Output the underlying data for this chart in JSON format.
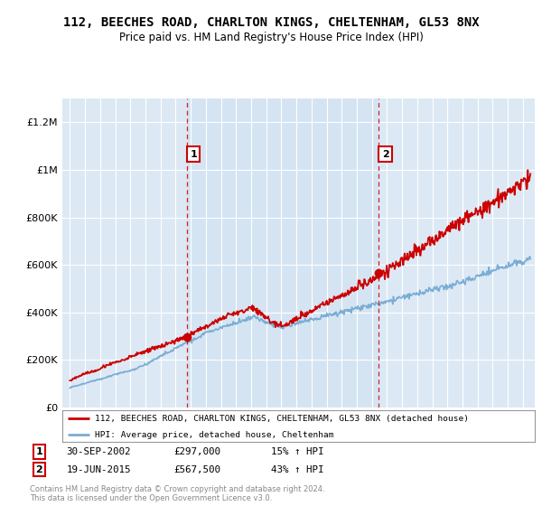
{
  "title": "112, BEECHES ROAD, CHARLTON KINGS, CHELTENHAM, GL53 8NX",
  "subtitle": "Price paid vs. HM Land Registry's House Price Index (HPI)",
  "legend_line1": "112, BEECHES ROAD, CHARLTON KINGS, CHELTENHAM, GL53 8NX (detached house)",
  "legend_line2": "HPI: Average price, detached house, Cheltenham",
  "sale1_date": "30-SEP-2002",
  "sale1_price": "£297,000",
  "sale1_hpi": "15% ↑ HPI",
  "sale1_year": 2002.75,
  "sale1_value": 297000,
  "sale2_date": "19-JUN-2015",
  "sale2_price": "£567,500",
  "sale2_hpi": "43% ↑ HPI",
  "sale2_year": 2015.46,
  "sale2_value": 567500,
  "footer": "Contains HM Land Registry data © Crown copyright and database right 2024.\nThis data is licensed under the Open Government Licence v3.0.",
  "ylim_min": 0,
  "ylim_max": 1300000,
  "xlim_start": 1994.5,
  "xlim_end": 2025.8,
  "bg_color": "#dce9f5",
  "mid_bg_color": "#cfe0f0",
  "white": "#ffffff",
  "red_color": "#cc0000",
  "blue_color": "#7aadd4",
  "gray": "#888888",
  "title_fontsize": 10,
  "subtitle_fontsize": 8.5
}
